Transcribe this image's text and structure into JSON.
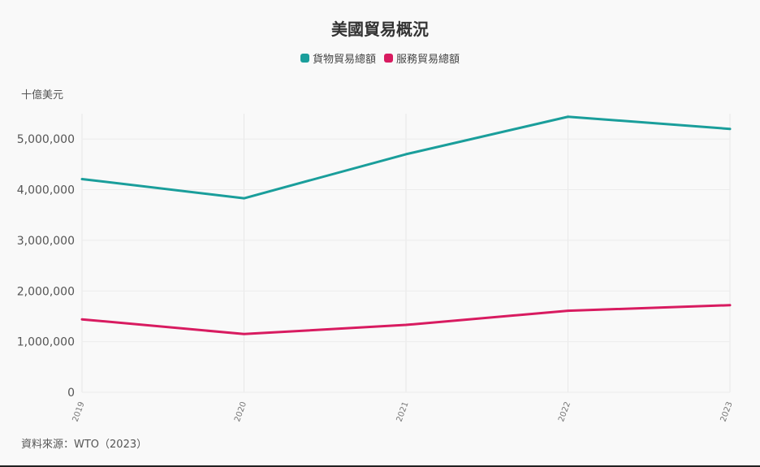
{
  "chart_data": {
    "type": "line",
    "title": "美國貿易概況",
    "ylabel": "十億美元",
    "xlabel": "",
    "x": [
      "2019",
      "2020",
      "2021",
      "2022",
      "2023"
    ],
    "ylim": [
      0,
      5500000
    ],
    "yticks": [
      0,
      1000000,
      2000000,
      3000000,
      4000000,
      5000000
    ],
    "ytick_labels": [
      "0",
      "1,000,000",
      "2,000,000",
      "3,000,000",
      "4,000,000",
      "5,000,000"
    ],
    "grid": true,
    "legend_position": "top-center",
    "series": [
      {
        "name": "貨物貿易總額",
        "color": "#1a9e9b",
        "values": [
          4210000,
          3830000,
          4700000,
          5440000,
          5200000
        ]
      },
      {
        "name": "服務貿易總額",
        "color": "#d81b60",
        "values": [
          1440000,
          1150000,
          1330000,
          1610000,
          1720000
        ]
      }
    ],
    "source": "資料來源：WTO（2023）"
  }
}
